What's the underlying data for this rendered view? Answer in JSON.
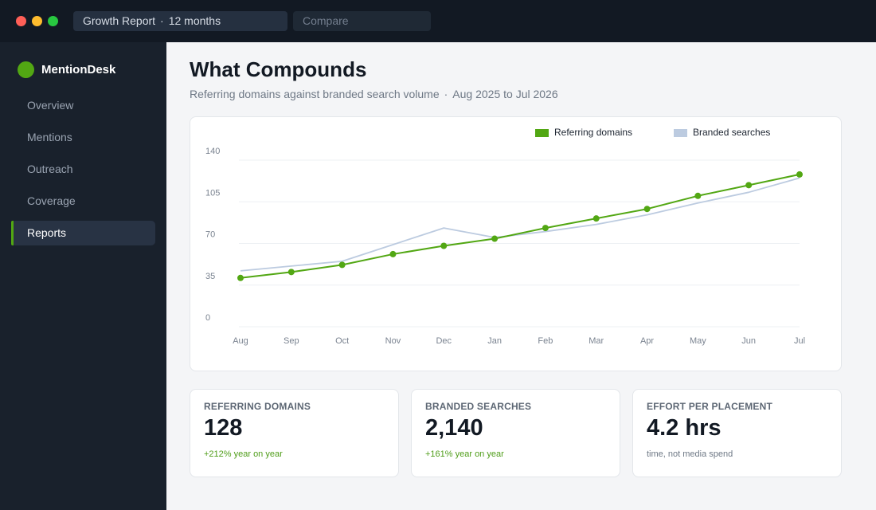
{
  "window": {
    "report_selector": {
      "name": "Growth Report",
      "separator": "·",
      "period": "12 months"
    },
    "compare_placeholder": "Compare"
  },
  "sidebar": {
    "brand": "MentionDesk",
    "items": [
      {
        "label": "Overview",
        "active": false
      },
      {
        "label": "Mentions",
        "active": false
      },
      {
        "label": "Outreach",
        "active": false
      },
      {
        "label": "Coverage",
        "active": false
      },
      {
        "label": "Reports",
        "active": true
      }
    ]
  },
  "main": {
    "title": "What Compounds",
    "subtitle": {
      "description": "Referring domains against branded search volume",
      "separator": "·",
      "range": "Aug 2025 to Jul 2026"
    }
  },
  "chart_data": {
    "type": "line",
    "categories": [
      "Aug",
      "Sep",
      "Oct",
      "Nov",
      "Dec",
      "Jan",
      "Feb",
      "Mar",
      "Apr",
      "May",
      "Jun",
      "Jul"
    ],
    "ylim": [
      0,
      140
    ],
    "yticks": [
      0,
      35,
      70,
      105,
      140
    ],
    "grid": true,
    "legend_position": "top-right",
    "series": [
      {
        "name": "Referring domains",
        "color": "#52a713",
        "markers": true,
        "values": [
          41,
          46,
          52,
          61,
          68,
          74,
          83,
          91,
          99,
          110,
          119,
          128
        ]
      },
      {
        "name": "Branded searches",
        "color": "#bccbe0",
        "markers": false,
        "values": [
          47,
          51,
          55,
          69,
          83,
          75,
          80,
          86,
          94,
          104,
          113,
          125
        ]
      }
    ]
  },
  "stats": [
    {
      "label": "REFERRING DOMAINS",
      "value": "128",
      "note": "+212% year on year",
      "tone": "positive"
    },
    {
      "label": "BRANDED SEARCHES",
      "value": "2,140",
      "note": "+161% year on year",
      "tone": "positive"
    },
    {
      "label": "EFFORT PER PLACEMENT",
      "value": "4.2 hrs",
      "note": "time, not media spend",
      "tone": "neutral"
    }
  ]
}
